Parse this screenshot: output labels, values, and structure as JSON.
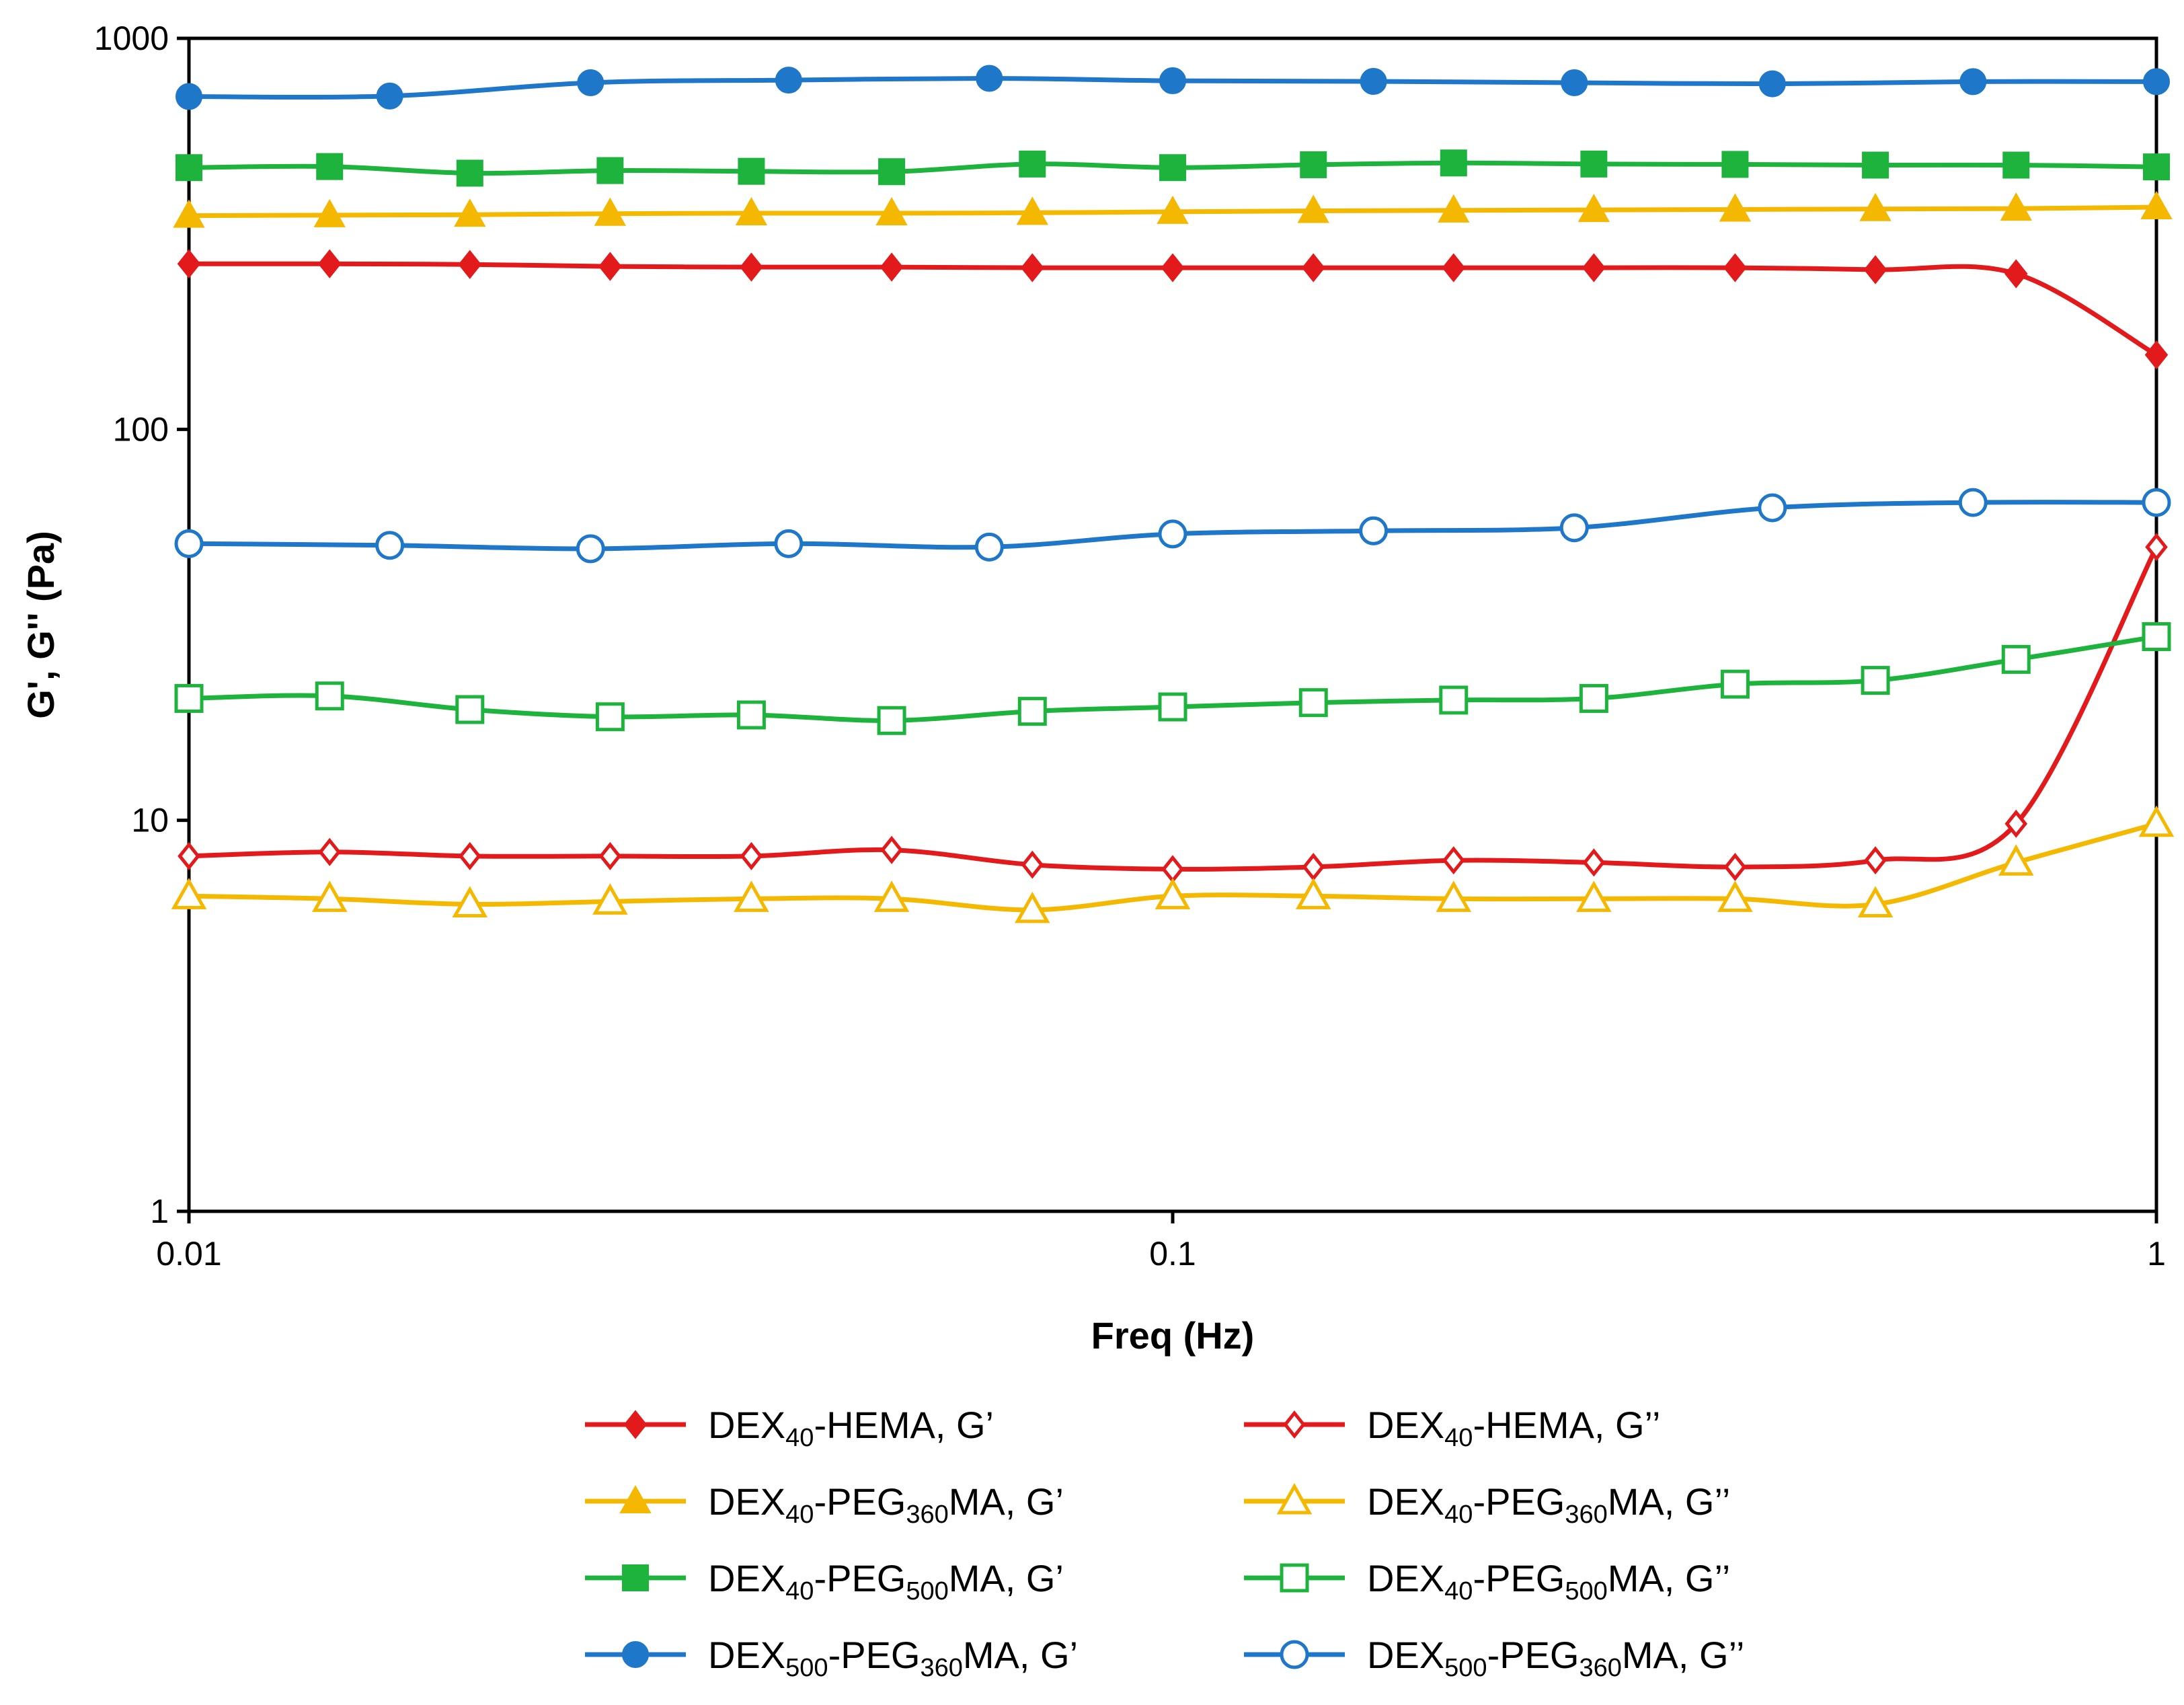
{
  "chart_data": {
    "type": "line",
    "title": "",
    "xlabel": "Freq (Hz)",
    "ylabel": "G', G'' (Pa)",
    "xscale": "log",
    "yscale": "log",
    "xlim": [
      0.01,
      1
    ],
    "ylim": [
      1,
      1000
    ],
    "xticks": [
      0.01,
      0.1,
      1
    ],
    "xtick_labels": [
      "0.01",
      "0.1",
      "1"
    ],
    "yticks": [
      1,
      10,
      100,
      1000
    ],
    "ytick_labels": [
      "1",
      "10",
      "100",
      "1000"
    ],
    "grid": false,
    "legend_position": "bottom",
    "series": [
      {
        "name": "DEX40-HEMA, G’",
        "legend": {
          "pre": "DEX",
          "sub": "40",
          "post": "-HEMA, G’"
        },
        "color": "#e31a1c",
        "marker": "diamond",
        "filled": true,
        "x": [
          0.01,
          0.0139,
          0.0193,
          0.0268,
          0.0373,
          0.0518,
          0.072,
          0.1,
          0.139,
          0.193,
          0.268,
          0.373,
          0.518,
          0.72,
          1.0
        ],
        "y": [
          265,
          265,
          264,
          261,
          260,
          260,
          259,
          259,
          259,
          259,
          259,
          259,
          256,
          250,
          155
        ]
      },
      {
        "name": "DEX40-PEG360MA, G’",
        "legend": {
          "pre": "DEX",
          "sub": "40",
          "mid": "-PEG",
          "sub2": "360",
          "post": "MA, G’"
        },
        "color": "#f5b800",
        "marker": "triangle",
        "filled": true,
        "x": [
          0.01,
          0.0139,
          0.0193,
          0.0268,
          0.0373,
          0.0518,
          0.072,
          0.1,
          0.139,
          0.193,
          0.268,
          0.373,
          0.518,
          0.72,
          1.0
        ],
        "y": [
          352,
          353,
          354,
          356,
          357,
          357,
          358,
          360,
          362,
          363,
          364,
          365,
          366,
          367,
          370
        ]
      },
      {
        "name": "DEX40-PEG500MA, G’",
        "legend": {
          "pre": "DEX",
          "sub": "40",
          "mid": "-PEG",
          "sub2": "500",
          "post": "MA, G’"
        },
        "color": "#1db33c",
        "marker": "square",
        "filled": true,
        "x": [
          0.01,
          0.0139,
          0.0193,
          0.0268,
          0.0373,
          0.0518,
          0.072,
          0.1,
          0.139,
          0.193,
          0.268,
          0.373,
          0.518,
          0.72,
          1.0
        ],
        "y": [
          467,
          470,
          452,
          459,
          457,
          456,
          477,
          467,
          475,
          480,
          477,
          476,
          474,
          474,
          469
        ]
      },
      {
        "name": "DEX500-PEG360MA, G’",
        "legend": {
          "pre": "DEX",
          "sub": "500",
          "mid": "-PEG",
          "sub2": "360",
          "post": "MA, G’"
        },
        "color": "#1f77c9",
        "marker": "circle",
        "filled": true,
        "x": [
          0.01,
          0.016,
          0.0256,
          0.0407,
          0.0651,
          0.1,
          0.16,
          0.256,
          0.407,
          0.651,
          1.0
        ],
        "y": [
          710,
          712,
          770,
          782,
          790,
          779,
          776,
          770,
          765,
          775,
          775
        ]
      },
      {
        "name": "DEX40-HEMA, G’’",
        "legend": {
          "pre": "DEX",
          "sub": "40",
          "post": "-HEMA, G’’"
        },
        "color": "#e31a1c",
        "marker": "diamond",
        "filled": false,
        "x": [
          0.01,
          0.0139,
          0.0193,
          0.0268,
          0.0373,
          0.0518,
          0.072,
          0.1,
          0.139,
          0.193,
          0.268,
          0.373,
          0.518,
          0.72,
          1.0
        ],
        "y": [
          8.1,
          8.3,
          8.1,
          8.1,
          8.1,
          8.4,
          7.7,
          7.5,
          7.6,
          7.9,
          7.8,
          7.6,
          7.9,
          9.8,
          50
        ]
      },
      {
        "name": "DEX40-PEG360MA, G’’",
        "legend": {
          "pre": "DEX",
          "sub": "40",
          "mid": "-PEG",
          "sub2": "360",
          "post": "MA, G’’"
        },
        "color": "#f5b800",
        "marker": "triangle",
        "filled": false,
        "x": [
          0.01,
          0.0139,
          0.0193,
          0.0268,
          0.0373,
          0.0518,
          0.072,
          0.1,
          0.139,
          0.193,
          0.268,
          0.373,
          0.518,
          0.72,
          1.0
        ],
        "y": [
          6.4,
          6.3,
          6.1,
          6.2,
          6.3,
          6.3,
          5.9,
          6.4,
          6.4,
          6.3,
          6.3,
          6.3,
          6.1,
          7.8,
          9.8
        ]
      },
      {
        "name": "DEX40-PEG500MA, G’’",
        "legend": {
          "pre": "DEX",
          "sub": "40",
          "mid": "-PEG",
          "sub2": "500",
          "post": "MA, G’’"
        },
        "color": "#1db33c",
        "marker": "square",
        "filled": false,
        "x": [
          0.01,
          0.0139,
          0.0193,
          0.0268,
          0.0373,
          0.0518,
          0.072,
          0.1,
          0.139,
          0.193,
          0.268,
          0.373,
          0.518,
          0.72,
          1.0
        ],
        "y": [
          20.5,
          20.8,
          19.2,
          18.4,
          18.6,
          18.0,
          19.0,
          19.5,
          20.0,
          20.3,
          20.5,
          22.3,
          22.8,
          25.8,
          29.5
        ]
      },
      {
        "name": "DEX500-PEG360MA, G’’",
        "legend": {
          "pre": "DEX",
          "sub": "500",
          "mid": "-PEG",
          "sub2": "360",
          "post": "MA, G’’"
        },
        "color": "#1f77c9",
        "marker": "circle",
        "filled": false,
        "x": [
          0.01,
          0.016,
          0.0256,
          0.0407,
          0.0651,
          0.1,
          0.16,
          0.256,
          0.407,
          0.651,
          1.0
        ],
        "y": [
          51,
          50.5,
          49.5,
          51,
          50,
          54,
          55,
          56,
          63,
          65,
          65
        ]
      }
    ],
    "legend_order": [
      0,
      4,
      1,
      5,
      2,
      6,
      3,
      7
    ]
  }
}
